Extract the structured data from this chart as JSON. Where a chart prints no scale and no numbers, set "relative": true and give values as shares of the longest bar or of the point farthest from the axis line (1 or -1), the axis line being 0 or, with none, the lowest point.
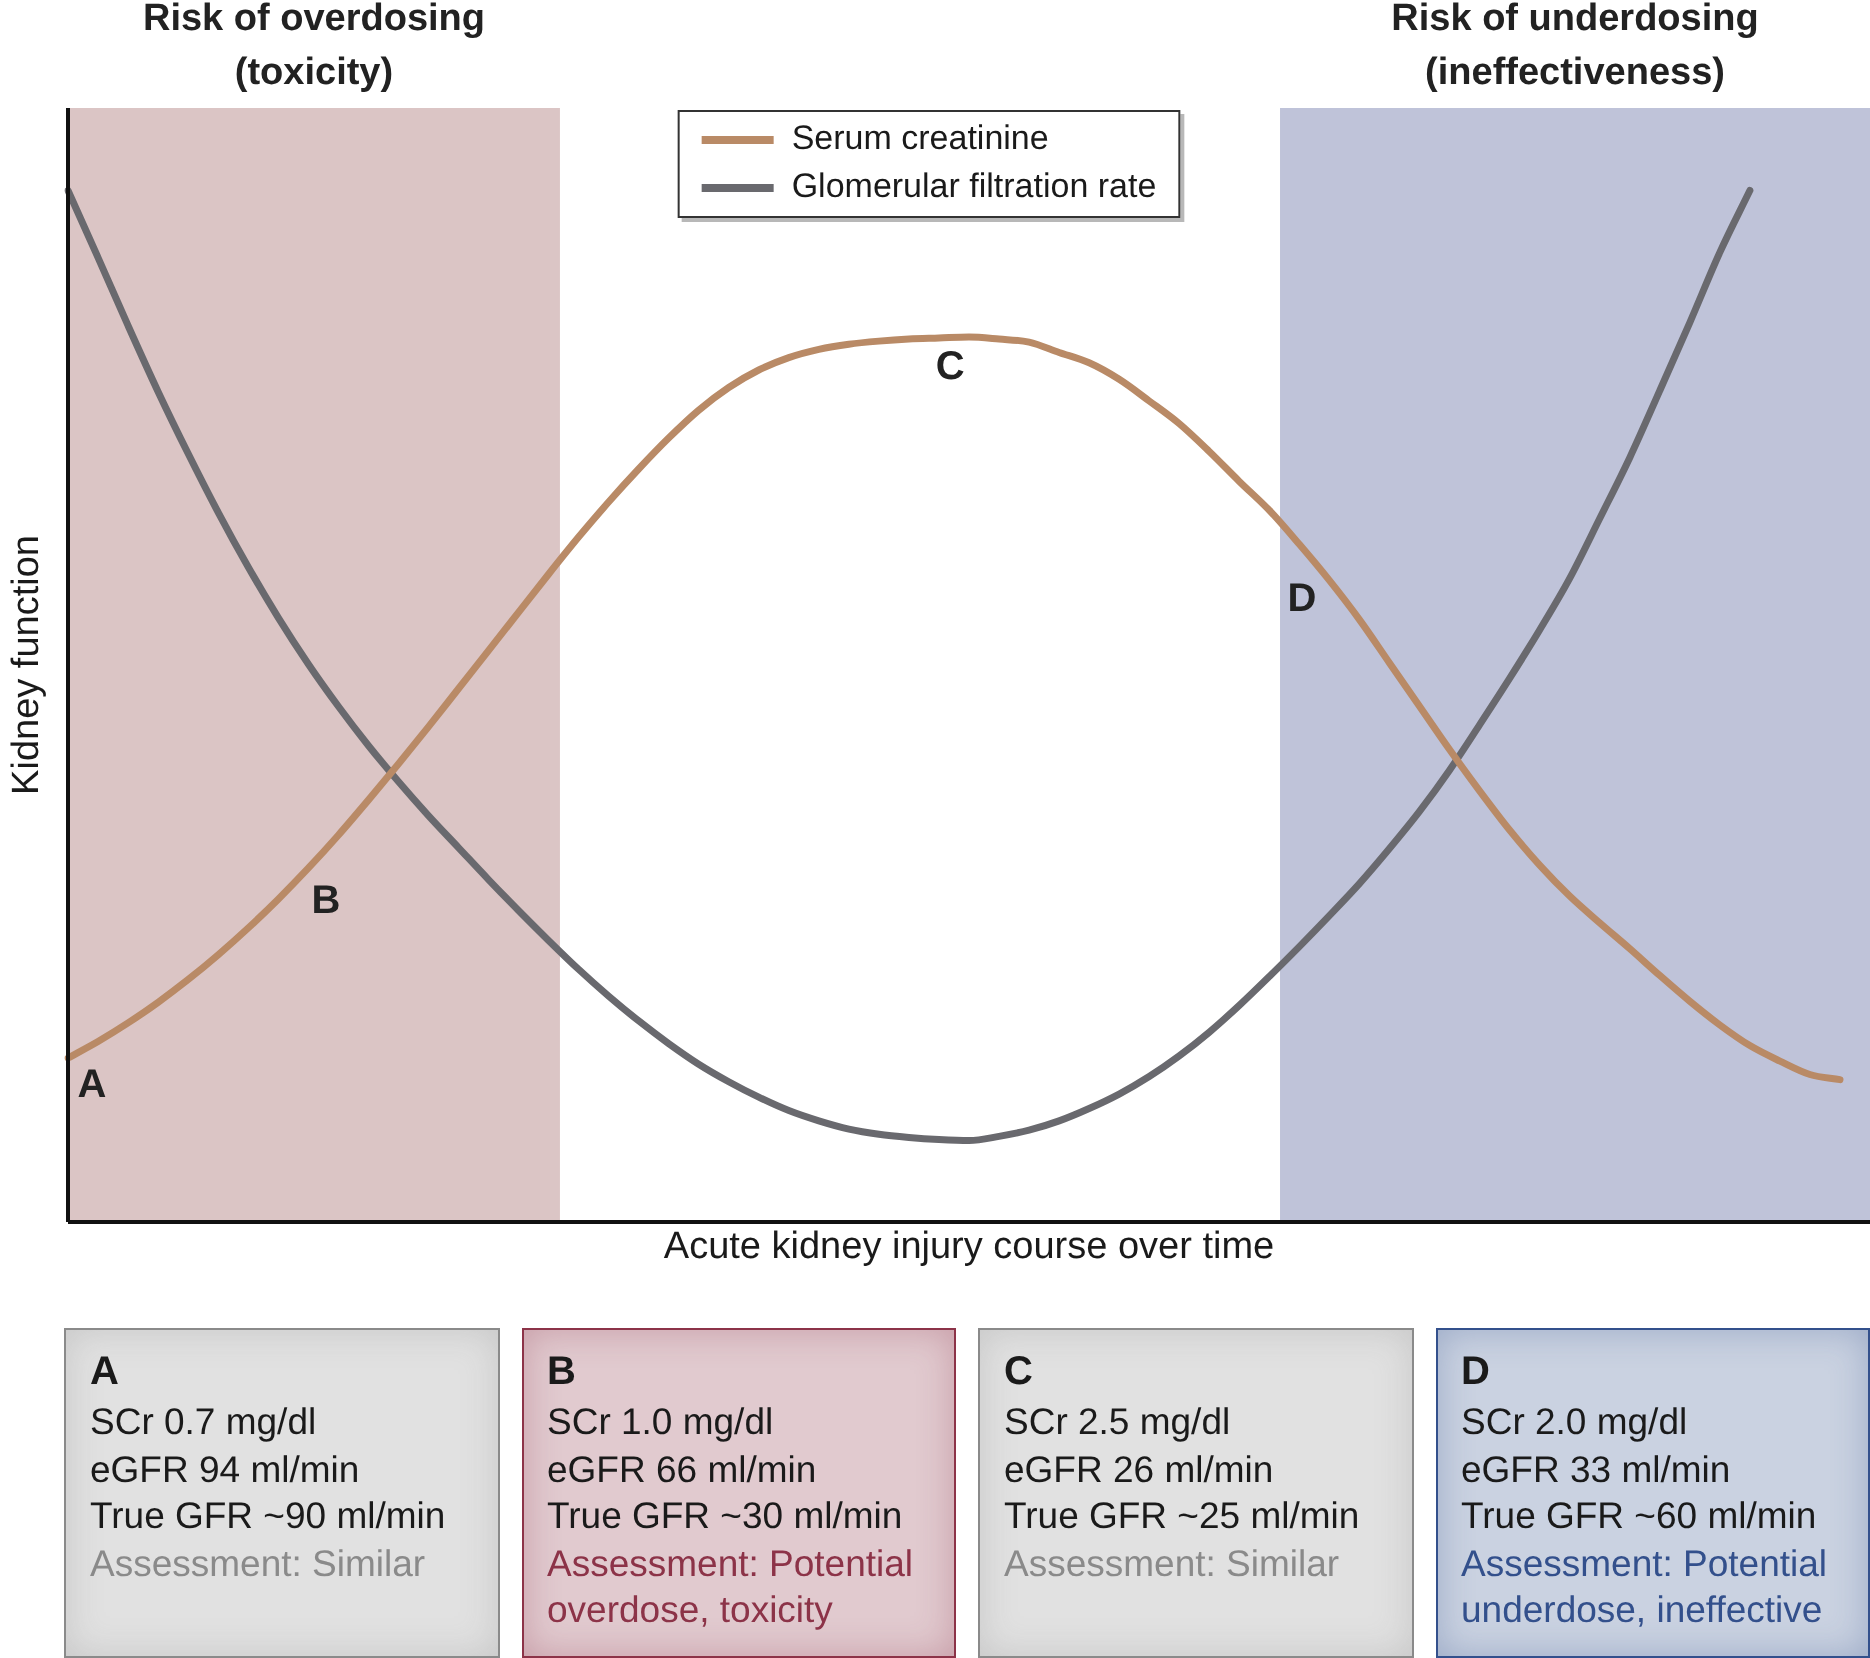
{
  "chart_data": [
    {
      "type": "line",
      "relative": true,
      "xlabel": "Acute kidney injury course over time",
      "ylabel": "Kidney function",
      "legend": "top",
      "categories": [
        null,
        null,
        null,
        null,
        null,
        null,
        null,
        null,
        null,
        null,
        null,
        null,
        null,
        null,
        null,
        null,
        null,
        null,
        null,
        null,
        null,
        null,
        null,
        null,
        null,
        null,
        null,
        null,
        null,
        null,
        null,
        null,
        null,
        null,
        null,
        null,
        null,
        null,
        null,
        null,
        null,
        null,
        null,
        null,
        null,
        null,
        null,
        null,
        null,
        null,
        null,
        null,
        null,
        null,
        null,
        null,
        null,
        null,
        null,
        null,
        null
      ],
      "series": [
        {
          "name": "Serum creatinine",
          "color": "#b98a66",
          "values": [
            0.159,
            0.175,
            0.193,
            0.213,
            0.235,
            0.259,
            0.285,
            0.313,
            0.343,
            0.375,
            0.409,
            0.444,
            0.48,
            0.517,
            0.554,
            0.591,
            0.628,
            0.664,
            0.698,
            0.73,
            0.76,
            0.787,
            0.809,
            0.826,
            0.838,
            0.846,
            0.851,
            0.854,
            0.856,
            0.857,
            0.858,
            0.856,
            0.853,
            0.843,
            0.833,
            0.817,
            0.796,
            0.774,
            0.747,
            0.718,
            0.69,
            0.657,
            0.622,
            0.584,
            0.542,
            0.5,
            0.458,
            0.418,
            0.38,
            0.346,
            0.316,
            0.29,
            0.265,
            0.239,
            0.214,
            0.191,
            0.171,
            0.156,
            0.143,
            0.138,
            null
          ]
        },
        {
          "name": "Glomerular filtration rate",
          "color": "#69696e",
          "values": [
            1.0,
            0.935,
            0.869,
            0.805,
            0.745,
            0.688,
            0.635,
            0.586,
            0.541,
            0.5,
            0.462,
            0.427,
            0.394,
            0.363,
            0.332,
            0.302,
            0.273,
            0.245,
            0.219,
            0.195,
            0.173,
            0.153,
            0.136,
            0.121,
            0.108,
            0.098,
            0.09,
            0.085,
            0.082,
            0.08,
            0.079,
            0.083,
            0.089,
            0.098,
            0.11,
            0.124,
            0.141,
            0.161,
            0.184,
            0.21,
            0.238,
            0.267,
            0.297,
            0.328,
            0.362,
            0.398,
            0.438,
            0.482,
            0.527,
            0.574,
            0.624,
            0.682,
            0.741,
            0.806,
            0.872,
            0.94,
            1.0,
            null,
            null,
            null,
            null
          ]
        }
      ],
      "annotations": [
        "Risk of overdosing (toxicity)",
        "Risk of underdosing (ineffectiveness)",
        "A",
        "B",
        "C",
        "D"
      ]
    },
    {
      "type": "other",
      "annotations": [
        "A\nSCr 0.7 mg/dl\neGFR 94 ml/min\nTrue GFR ~90 ml/min\nAssessment: Similar",
        "B\nSCr 1.0 mg/dl\neGFR 66 ml/min\nTrue GFR ~30 ml/min\nAssessment: Potential overdose, toxicity",
        "C\nSCr 2.5 mg/dl\neGFR 26 ml/min\nTrue GFR ~25 ml/min\nAssessment: Similar",
        "D\nSCr 2.0 mg/dl\neGFR 33 ml/min\nTrue GFR ~60 ml/min\nAssessment: Potential underdose, ineffective"
      ],
      "colors": [
        "#8a8a8a",
        "#8c3348",
        "#8a8a8a",
        "#33508c"
      ]
    }
  ]
}
